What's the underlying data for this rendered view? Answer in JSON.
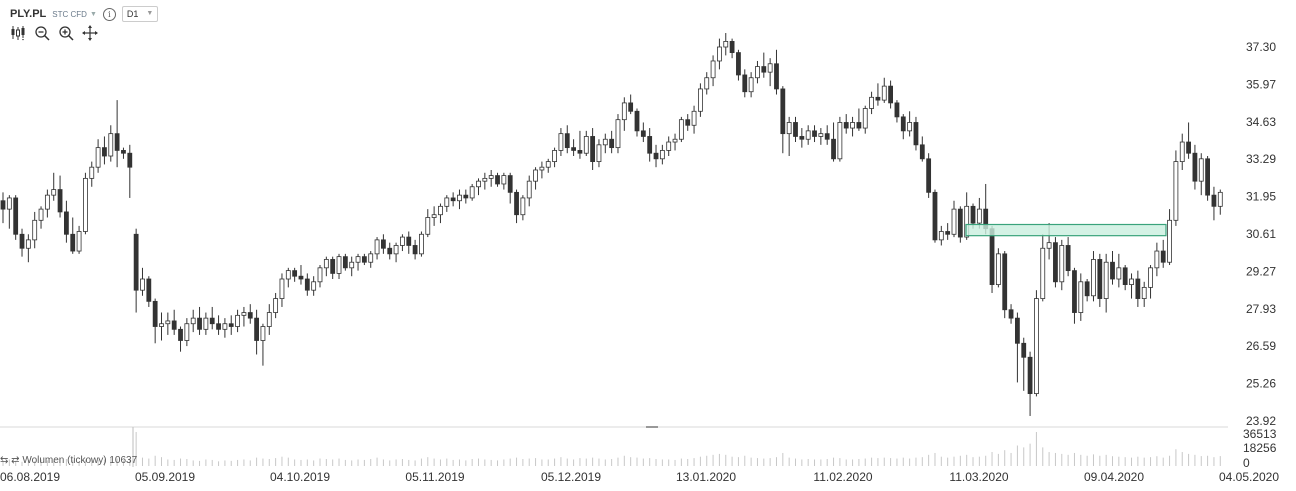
{
  "header": {
    "symbol": "PLY.PL",
    "instrument_type": "STC CFD",
    "timeframe": "D1"
  },
  "toolbar": [
    "candles-icon",
    "zoom-out-icon",
    "zoom-in-icon",
    "crosshair-icon"
  ],
  "volume_label": "⇆ ⇄ Wolumen (tickowy) 10637",
  "colors": {
    "up": "#ffffff",
    "down": "#333333",
    "wick": "#333333",
    "zone_fill": "#c9efdf",
    "zone_stroke": "#3aa37c",
    "grid": "#e5e5e5",
    "volume": "#c8c8c8"
  },
  "chart_data": {
    "type": "candlestick",
    "ylim": [
      23.92,
      38.2
    ],
    "yticks": [
      "37.30",
      "35.97",
      "34.63",
      "33.29",
      "31.95",
      "30.61",
      "29.27",
      "27.93",
      "26.59",
      "25.26",
      "23.92"
    ],
    "xticks": [
      "06.08.2019",
      "05.09.2019",
      "04.10.2019",
      "05.11.2019",
      "05.12.2019",
      "13.01.2020",
      "11.02.2020",
      "11.03.2020",
      "09.04.2020",
      "04.05.2020"
    ],
    "volume_ticks": [
      "36513",
      "18256",
      "0"
    ],
    "zone": {
      "from": 30.55,
      "to": 30.95,
      "start": "11.03.2020",
      "end": "20.04.2020"
    },
    "ohlc": [
      [
        31.8,
        32.1,
        31.0,
        31.5
      ],
      [
        31.5,
        32.0,
        30.8,
        31.9
      ],
      [
        31.9,
        32.0,
        30.4,
        30.6
      ],
      [
        30.6,
        30.8,
        29.8,
        30.1
      ],
      [
        30.1,
        30.6,
        29.6,
        30.4
      ],
      [
        30.4,
        31.4,
        30.1,
        31.1
      ],
      [
        31.1,
        31.6,
        30.8,
        31.5
      ],
      [
        31.5,
        32.2,
        31.2,
        32.0
      ],
      [
        32.0,
        32.8,
        31.8,
        32.2
      ],
      [
        32.2,
        32.7,
        31.2,
        31.4
      ],
      [
        31.4,
        31.8,
        30.3,
        30.6
      ],
      [
        30.6,
        31.2,
        29.9,
        30.0
      ],
      [
        30.0,
        30.9,
        29.9,
        30.7
      ],
      [
        30.7,
        32.8,
        30.6,
        32.6
      ],
      [
        32.6,
        33.2,
        32.3,
        33.0
      ],
      [
        33.0,
        34.0,
        32.8,
        33.7
      ],
      [
        33.7,
        34.1,
        33.1,
        33.4
      ],
      [
        33.4,
        34.5,
        33.2,
        34.2
      ],
      [
        34.2,
        35.4,
        33.0,
        33.6
      ],
      [
        33.6,
        33.7,
        33.3,
        33.5
      ],
      [
        33.5,
        33.8,
        31.9,
        33.0
      ],
      [
        30.6,
        30.8,
        27.8,
        28.6
      ],
      [
        28.6,
        29.4,
        28.4,
        29.0
      ],
      [
        29.0,
        29.1,
        28.0,
        28.2
      ],
      [
        28.2,
        28.3,
        26.7,
        27.3
      ],
      [
        27.3,
        27.8,
        26.8,
        27.4
      ],
      [
        27.4,
        27.8,
        27.0,
        27.5
      ],
      [
        27.5,
        27.9,
        27.0,
        27.2
      ],
      [
        27.2,
        27.3,
        26.4,
        26.8
      ],
      [
        26.8,
        27.6,
        26.6,
        27.4
      ],
      [
        27.4,
        27.9,
        27.1,
        27.6
      ],
      [
        27.6,
        28.0,
        27.0,
        27.2
      ],
      [
        27.2,
        27.8,
        27.0,
        27.6
      ],
      [
        27.6,
        28.0,
        27.2,
        27.4
      ],
      [
        27.4,
        27.7,
        27.0,
        27.2
      ],
      [
        27.2,
        27.6,
        26.9,
        27.4
      ],
      [
        27.4,
        27.7,
        27.0,
        27.3
      ],
      [
        27.3,
        27.9,
        27.1,
        27.7
      ],
      [
        27.7,
        28.0,
        27.3,
        27.8
      ],
      [
        27.8,
        28.1,
        27.4,
        27.6
      ],
      [
        27.6,
        27.9,
        26.3,
        26.8
      ],
      [
        26.8,
        27.4,
        25.9,
        27.3
      ],
      [
        27.3,
        28.1,
        27.0,
        27.8
      ],
      [
        27.8,
        28.5,
        27.6,
        28.3
      ],
      [
        28.3,
        29.2,
        28.0,
        29.0
      ],
      [
        29.0,
        29.4,
        28.7,
        29.3
      ],
      [
        29.3,
        29.4,
        28.9,
        29.1
      ],
      [
        29.1,
        29.5,
        28.8,
        29.0
      ],
      [
        29.0,
        29.2,
        28.4,
        28.6
      ],
      [
        28.6,
        29.1,
        28.4,
        28.9
      ],
      [
        28.9,
        29.5,
        28.7,
        29.4
      ],
      [
        29.4,
        29.8,
        29.1,
        29.7
      ],
      [
        29.7,
        29.8,
        29.0,
        29.2
      ],
      [
        29.2,
        29.9,
        29.0,
        29.8
      ],
      [
        29.8,
        29.9,
        29.3,
        29.4
      ],
      [
        29.4,
        29.8,
        29.1,
        29.6
      ],
      [
        29.6,
        29.9,
        29.3,
        29.8
      ],
      [
        29.8,
        29.9,
        29.5,
        29.6
      ],
      [
        29.6,
        30.0,
        29.4,
        29.9
      ],
      [
        29.9,
        30.5,
        29.7,
        30.4
      ],
      [
        30.4,
        30.6,
        29.9,
        30.1
      ],
      [
        30.1,
        30.3,
        29.7,
        29.9
      ],
      [
        29.9,
        30.3,
        29.6,
        30.2
      ],
      [
        30.2,
        30.6,
        30.0,
        30.5
      ],
      [
        30.5,
        30.7,
        29.9,
        30.2
      ],
      [
        30.2,
        30.4,
        29.7,
        29.9
      ],
      [
        29.9,
        30.7,
        29.8,
        30.6
      ],
      [
        30.6,
        31.5,
        30.5,
        31.2
      ],
      [
        31.2,
        31.6,
        30.9,
        31.3
      ],
      [
        31.3,
        31.7,
        31.0,
        31.6
      ],
      [
        31.6,
        32.0,
        31.4,
        31.9
      ],
      [
        31.9,
        32.1,
        31.6,
        31.8
      ],
      [
        31.8,
        32.2,
        31.5,
        32.0
      ],
      [
        32.0,
        32.2,
        31.7,
        31.9
      ],
      [
        31.9,
        32.4,
        31.8,
        32.3
      ],
      [
        32.3,
        32.6,
        32.0,
        32.5
      ],
      [
        32.5,
        32.8,
        32.2,
        32.6
      ],
      [
        32.6,
        32.9,
        32.3,
        32.7
      ],
      [
        32.7,
        32.8,
        32.3,
        32.4
      ],
      [
        32.4,
        32.8,
        32.2,
        32.7
      ],
      [
        32.7,
        32.8,
        31.7,
        32.1
      ],
      [
        32.1,
        32.2,
        31.0,
        31.3
      ],
      [
        31.3,
        32.0,
        31.1,
        31.9
      ],
      [
        31.9,
        32.7,
        31.6,
        32.5
      ],
      [
        32.5,
        33.0,
        32.2,
        32.9
      ],
      [
        32.9,
        33.2,
        32.6,
        33.0
      ],
      [
        33.0,
        33.3,
        32.8,
        33.2
      ],
      [
        33.2,
        33.7,
        33.0,
        33.6
      ],
      [
        33.6,
        34.4,
        33.4,
        34.2
      ],
      [
        34.2,
        34.5,
        33.5,
        33.7
      ],
      [
        33.7,
        34.0,
        33.4,
        33.6
      ],
      [
        33.6,
        34.3,
        33.3,
        33.5
      ],
      [
        33.5,
        34.3,
        33.4,
        34.1
      ],
      [
        34.1,
        34.4,
        32.9,
        33.2
      ],
      [
        33.2,
        34.0,
        33.0,
        33.8
      ],
      [
        33.8,
        34.2,
        33.5,
        34.0
      ],
      [
        34.0,
        34.3,
        33.5,
        33.7
      ],
      [
        33.7,
        34.9,
        33.5,
        34.7
      ],
      [
        34.7,
        35.5,
        34.3,
        35.3
      ],
      [
        35.3,
        35.6,
        34.9,
        35.0
      ],
      [
        35.0,
        35.1,
        34.1,
        34.3
      ],
      [
        34.3,
        34.6,
        33.9,
        34.1
      ],
      [
        34.1,
        34.4,
        33.2,
        33.5
      ],
      [
        33.5,
        33.8,
        33.0,
        33.3
      ],
      [
        33.3,
        33.8,
        33.1,
        33.6
      ],
      [
        33.6,
        34.1,
        33.4,
        33.9
      ],
      [
        33.9,
        34.2,
        33.6,
        34.0
      ],
      [
        34.0,
        34.8,
        33.9,
        34.7
      ],
      [
        34.7,
        34.9,
        34.3,
        34.5
      ],
      [
        34.5,
        35.2,
        34.2,
        35.0
      ],
      [
        35.0,
        36.0,
        34.8,
        35.8
      ],
      [
        35.8,
        36.4,
        35.6,
        36.2
      ],
      [
        36.2,
        37.0,
        35.9,
        36.8
      ],
      [
        36.8,
        37.6,
        36.5,
        37.3
      ],
      [
        37.3,
        37.8,
        37.0,
        37.5
      ],
      [
        37.5,
        37.6,
        36.9,
        37.1
      ],
      [
        37.1,
        37.2,
        36.1,
        36.3
      ],
      [
        36.3,
        36.5,
        35.5,
        35.7
      ],
      [
        35.7,
        36.4,
        35.5,
        36.2
      ],
      [
        36.2,
        36.8,
        36.0,
        36.6
      ],
      [
        36.6,
        37.1,
        36.2,
        36.4
      ],
      [
        36.4,
        36.9,
        35.9,
        36.7
      ],
      [
        36.7,
        37.2,
        35.6,
        35.8
      ],
      [
        35.8,
        35.9,
        33.5,
        34.2
      ],
      [
        34.2,
        34.8,
        33.4,
        34.6
      ],
      [
        34.6,
        34.8,
        33.9,
        34.1
      ],
      [
        34.1,
        34.4,
        33.7,
        34.0
      ],
      [
        34.0,
        34.5,
        33.8,
        34.3
      ],
      [
        34.3,
        34.5,
        33.9,
        34.1
      ],
      [
        34.1,
        34.4,
        33.8,
        34.2
      ],
      [
        34.2,
        34.5,
        33.8,
        34.0
      ],
      [
        34.0,
        34.6,
        33.2,
        33.3
      ],
      [
        33.3,
        34.8,
        33.2,
        34.6
      ],
      [
        34.6,
        34.9,
        34.2,
        34.4
      ],
      [
        34.4,
        34.8,
        34.1,
        34.6
      ],
      [
        34.6,
        35.1,
        34.3,
        34.4
      ],
      [
        34.4,
        35.2,
        34.2,
        35.1
      ],
      [
        35.1,
        35.7,
        34.9,
        35.5
      ],
      [
        35.5,
        36.0,
        35.2,
        35.4
      ],
      [
        35.4,
        36.2,
        35.3,
        35.9
      ],
      [
        35.9,
        36.1,
        35.1,
        35.3
      ],
      [
        35.3,
        35.4,
        34.6,
        34.8
      ],
      [
        34.8,
        34.9,
        34.0,
        34.3
      ],
      [
        34.3,
        35.0,
        34.1,
        34.6
      ],
      [
        34.6,
        34.8,
        33.6,
        33.8
      ],
      [
        33.8,
        34.1,
        33.2,
        33.3
      ],
      [
        33.3,
        33.5,
        31.9,
        32.1
      ],
      [
        32.1,
        32.2,
        30.3,
        30.4
      ],
      [
        30.4,
        30.9,
        30.2,
        30.7
      ],
      [
        30.7,
        31.0,
        30.4,
        30.6
      ],
      [
        30.6,
        31.8,
        30.5,
        31.5
      ],
      [
        31.5,
        31.6,
        30.3,
        30.5
      ],
      [
        30.5,
        32.1,
        30.4,
        31.6
      ],
      [
        31.6,
        31.7,
        30.8,
        31.0
      ],
      [
        31.0,
        31.9,
        30.8,
        31.5
      ],
      [
        31.5,
        32.4,
        30.6,
        30.8
      ],
      [
        30.8,
        30.9,
        28.5,
        28.8
      ],
      [
        28.8,
        30.1,
        28.7,
        29.9
      ],
      [
        29.9,
        30.0,
        27.6,
        27.9
      ],
      [
        27.9,
        28.1,
        27.4,
        27.6
      ],
      [
        27.6,
        27.8,
        25.3,
        26.7
      ],
      [
        26.7,
        26.9,
        25.0,
        26.2
      ],
      [
        26.2,
        26.4,
        24.1,
        24.9
      ],
      [
        24.9,
        28.6,
        24.8,
        28.3
      ],
      [
        28.3,
        30.6,
        28.2,
        30.1
      ],
      [
        30.1,
        31.0,
        29.7,
        30.3
      ],
      [
        30.3,
        30.5,
        28.7,
        28.9
      ],
      [
        28.9,
        30.4,
        28.6,
        30.2
      ],
      [
        30.2,
        30.5,
        29.1,
        29.3
      ],
      [
        29.3,
        29.4,
        27.4,
        27.8
      ],
      [
        27.8,
        29.2,
        27.5,
        28.9
      ],
      [
        28.9,
        29.0,
        28.2,
        28.4
      ],
      [
        28.4,
        30.0,
        28.2,
        29.7
      ],
      [
        29.7,
        29.9,
        28.0,
        28.3
      ],
      [
        28.3,
        29.9,
        27.8,
        29.6
      ],
      [
        29.6,
        30.0,
        28.8,
        29.0
      ],
      [
        29.0,
        29.9,
        28.7,
        29.4
      ],
      [
        29.4,
        29.5,
        28.6,
        28.8
      ],
      [
        28.8,
        29.2,
        28.3,
        29.0
      ],
      [
        29.0,
        29.3,
        28.0,
        28.3
      ],
      [
        28.3,
        28.9,
        28.0,
        28.7
      ],
      [
        28.7,
        29.5,
        28.3,
        29.4
      ],
      [
        29.4,
        30.3,
        29.1,
        30.0
      ],
      [
        30.0,
        30.4,
        29.4,
        29.6
      ],
      [
        29.6,
        31.5,
        29.5,
        31.1
      ],
      [
        31.1,
        33.6,
        30.9,
        33.2
      ],
      [
        33.2,
        34.2,
        32.9,
        33.9
      ],
      [
        33.9,
        34.6,
        33.3,
        33.5
      ],
      [
        33.5,
        33.8,
        32.2,
        32.5
      ],
      [
        32.5,
        33.5,
        32.0,
        33.3
      ],
      [
        33.3,
        33.4,
        31.8,
        32.0
      ],
      [
        32.0,
        32.3,
        31.1,
        31.6
      ],
      [
        31.6,
        32.2,
        31.3,
        32.1
      ]
    ],
    "volume": [
      6000,
      7000,
      5500,
      4500,
      6500,
      5000,
      7000,
      6000,
      5500,
      8000,
      7500,
      6000,
      5000,
      7000,
      8500,
      6500,
      7000,
      9000,
      8000,
      6000,
      7000,
      36513,
      9000,
      8000,
      11000,
      9500,
      7000,
      6500,
      8000,
      7500,
      6000,
      5500,
      7000,
      6500,
      5000,
      6000,
      5500,
      6500,
      7000,
      6000,
      9000,
      8000,
      7500,
      8500,
      10000,
      9000,
      7000,
      6500,
      7000,
      6000,
      8000,
      7500,
      7000,
      8000,
      6500,
      6000,
      7000,
      6500,
      7500,
      9000,
      7000,
      6000,
      7000,
      7500,
      6500,
      6000,
      8000,
      9500,
      8000,
      7000,
      8000,
      6500,
      7000,
      6000,
      7500,
      8000,
      7000,
      6500,
      6000,
      7000,
      8000,
      9000,
      7500,
      8000,
      8500,
      7000,
      7000,
      8000,
      9500,
      8000,
      7000,
      8500,
      8000,
      9000,
      8000,
      7000,
      7500,
      9000,
      11000,
      9500,
      9000,
      8000,
      8500,
      7500,
      7000,
      7000,
      6500,
      8000,
      7500,
      8500,
      10000,
      11000,
      12000,
      13000,
      12000,
      10000,
      9500,
      11000,
      9000,
      8500,
      8000,
      8500,
      9500,
      14000,
      9000,
      8000,
      7000,
      7500,
      7000,
      7000,
      7500,
      9000,
      8500,
      7000,
      7000,
      7500,
      8000,
      9000,
      8500,
      9000,
      8500,
      8000,
      9000,
      8000,
      9000,
      9500,
      12000,
      14000,
      10000,
      9000,
      10000,
      11000,
      12000,
      9500,
      10000,
      11000,
      15000,
      13000,
      17000,
      14000,
      22000,
      20000,
      24000,
      36513,
      20000,
      15000,
      14000,
      13000,
      12000,
      14000,
      12000,
      11000,
      12500,
      11000,
      12000,
      10500,
      10000,
      9500,
      9000,
      10000,
      9000,
      9500,
      10500,
      9000,
      11000,
      18000,
      15000,
      13000,
      12000,
      10637,
      11000,
      9500,
      10637
    ]
  }
}
